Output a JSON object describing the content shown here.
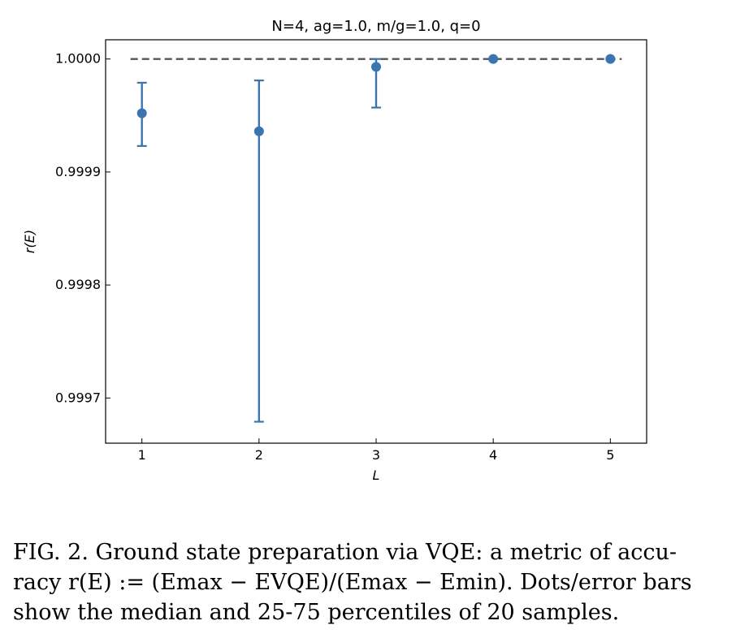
{
  "chart_data": {
    "type": "scatter",
    "title": "N=4, ag=1.0, m/g=1.0, q=0",
    "xlabel": "L",
    "ylabel": "r(E)",
    "x": [
      1,
      2,
      3,
      4,
      5
    ],
    "x_ticks": [
      "1",
      "2",
      "3",
      "4",
      "5"
    ],
    "xlim": [
      0.69,
      5.31
    ],
    "ylim": [
      0.99966,
      1.000017
    ],
    "y_ticks": [
      "0.9997",
      "0.9998",
      "0.9999",
      "1.0000"
    ],
    "y_tick_values": [
      0.9997,
      0.9998,
      0.9999,
      1.0
    ],
    "series": [
      {
        "median": [
          0.999952,
          0.999936,
          0.999993,
          1.0,
          1.0
        ],
        "p25": [
          0.999923,
          0.999679,
          0.999957,
          1.0,
          1.0
        ],
        "p75": [
          0.999979,
          0.999981,
          1.0,
          1.0,
          1.0
        ],
        "color": "#3b75af"
      }
    ],
    "reference_line": {
      "y": 1.0,
      "style": "dashed",
      "color": "#555555"
    },
    "grid": false,
    "legend": "none"
  },
  "caption": {
    "line1": "FIG. 2. Ground state preparation via VQE: a metric of accu-",
    "line2": "racy r(E) := (Emax − EVQE)/(Emax − Emin). Dots/error bars",
    "line3": "show the median and 25-75 percentiles of 20 samples."
  }
}
